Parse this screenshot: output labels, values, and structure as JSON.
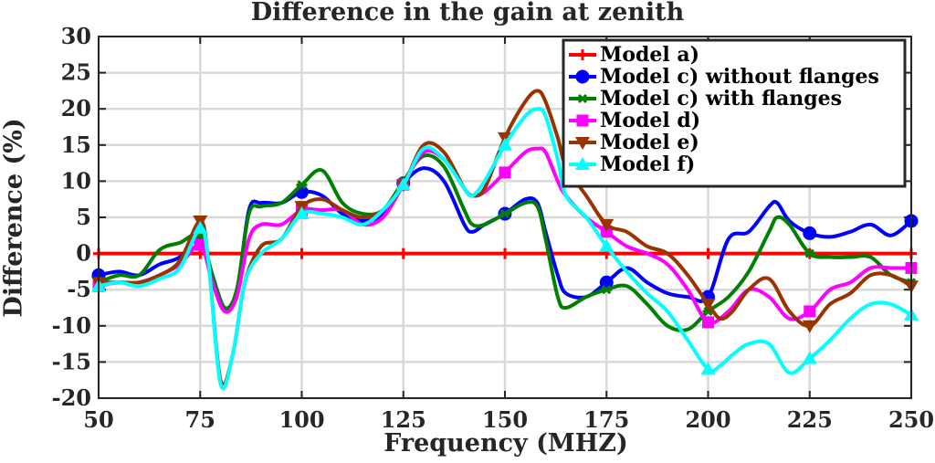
{
  "chart_data": {
    "type": "line",
    "title": "Difference in the gain at zenith",
    "xlabel": "Frequency (MHZ)",
    "ylabel": "Difference (%)",
    "xlim": [
      50,
      250
    ],
    "ylim": [
      -20,
      30
    ],
    "xticks": [
      50,
      75,
      100,
      125,
      150,
      175,
      200,
      225,
      250
    ],
    "yticks": [
      30,
      25,
      20,
      15,
      10,
      5,
      0,
      -5,
      -10,
      -15,
      -20
    ],
    "grid": true,
    "legend_position": "top-right",
    "series": [
      {
        "name": "Model a)",
        "color": "#ff0000",
        "marker": "plus",
        "x": [
          50,
          75,
          100,
          125,
          150,
          175,
          200,
          225,
          250
        ],
        "y": [
          0,
          0,
          0,
          0,
          0,
          0,
          0,
          0,
          0
        ],
        "markers_x": [
          50,
          75,
          100,
          125,
          150,
          175,
          200,
          225,
          250
        ],
        "markers_y": [
          0,
          0,
          0,
          0,
          0,
          0,
          0,
          0,
          0
        ]
      },
      {
        "name": "Model c) without flanges",
        "color": "#0000ff",
        "marker": "circle",
        "x": [
          50,
          55,
          60,
          65,
          70,
          75,
          78,
          81,
          84,
          87,
          90,
          95,
          100,
          105,
          110,
          115,
          120,
          125,
          130,
          135,
          140,
          142,
          145,
          150,
          155,
          158,
          160,
          163,
          165,
          170,
          175,
          180,
          185,
          190,
          195,
          200,
          205,
          210,
          215,
          217,
          220,
          225,
          230,
          235,
          240,
          245,
          250
        ],
        "y": [
          -3,
          -2.5,
          -3,
          -1.5,
          -0.5,
          2.2,
          -3,
          -7.5,
          -5.5,
          6,
          7,
          7,
          8.5,
          8,
          5.5,
          4.5,
          5.5,
          9.7,
          11.8,
          10,
          4,
          3,
          4,
          5.5,
          7.5,
          7,
          3,
          -3,
          -5.5,
          -6,
          -4,
          -2,
          -4,
          -5.5,
          -6,
          -6,
          2,
          3,
          6.5,
          7,
          4.5,
          2.8,
          2.3,
          3,
          4,
          2.5,
          4.5
        ],
        "markers_x": [
          50,
          75,
          100,
          125,
          150,
          175,
          200,
          225,
          250
        ],
        "markers_y": [
          -3,
          2.2,
          8.5,
          9.7,
          5.5,
          -4,
          -6,
          2.8,
          4.5
        ]
      },
      {
        "name": "Model c) with flanges",
        "color": "#008000",
        "marker": "asterisk",
        "x": [
          50,
          55,
          60,
          65,
          70,
          75,
          78,
          81,
          84,
          87,
          90,
          95,
          100,
          105,
          110,
          115,
          120,
          125,
          130,
          135,
          140,
          142,
          145,
          150,
          155,
          158,
          160,
          163,
          165,
          170,
          175,
          180,
          185,
          190,
          195,
          200,
          205,
          210,
          215,
          217,
          220,
          225,
          230,
          235,
          240,
          245,
          250
        ],
        "y": [
          -4,
          -3,
          -3,
          0.5,
          1.5,
          2.5,
          -3,
          -7.5,
          -5,
          5.5,
          6.5,
          7,
          9.5,
          11.5,
          7,
          5.5,
          6,
          10,
          13.5,
          12,
          6,
          4,
          4,
          5.5,
          7,
          6.5,
          2,
          -6,
          -7.5,
          -6,
          -5,
          -4.5,
          -7,
          -10,
          -10.5,
          -8,
          -6,
          -2.5,
          3,
          5,
          4,
          0,
          -0.5,
          -0.5,
          -0.5,
          -3,
          -4
        ],
        "markers_x": [
          50,
          75,
          100,
          125,
          150,
          175,
          200,
          225,
          250
        ],
        "markers_y": [
          -4,
          2.5,
          9.5,
          10,
          5.5,
          -5,
          -8,
          0,
          -4
        ]
      },
      {
        "name": "Model d)",
        "color": "#ff00ff",
        "marker": "square",
        "x": [
          50,
          55,
          60,
          65,
          70,
          75,
          78,
          81,
          84,
          87,
          90,
          95,
          100,
          105,
          110,
          115,
          120,
          125,
          130,
          135,
          140,
          142,
          145,
          150,
          155,
          158,
          160,
          163,
          165,
          170,
          175,
          180,
          185,
          190,
          195,
          200,
          205,
          210,
          215,
          220,
          225,
          230,
          235,
          240,
          245,
          250
        ],
        "y": [
          -4.5,
          -4,
          -4,
          -3,
          -1.5,
          1.2,
          -4,
          -8,
          -6,
          2,
          4,
          4,
          6,
          6,
          6,
          4,
          5,
          9.5,
          14,
          13,
          9,
          8,
          8.5,
          11.2,
          14,
          14.5,
          14,
          10,
          8,
          5,
          3,
          1,
          0,
          -1.5,
          -5,
          -9.5,
          -8,
          -5,
          -6,
          -9,
          -8,
          -5,
          -4,
          -2,
          -2,
          -2
        ],
        "markers_x": [
          50,
          75,
          100,
          125,
          150,
          175,
          200,
          225,
          250
        ],
        "markers_y": [
          -4.5,
          1.2,
          6,
          9.5,
          11.2,
          3,
          -9.5,
          -8,
          -2
        ]
      },
      {
        "name": "Model e)",
        "color": "#993300",
        "marker": "triangle-down",
        "x": [
          50,
          55,
          60,
          65,
          70,
          75,
          77,
          80,
          83,
          86,
          90,
          95,
          100,
          105,
          110,
          115,
          120,
          125,
          130,
          135,
          140,
          142,
          145,
          150,
          155,
          158,
          160,
          163,
          165,
          170,
          175,
          180,
          185,
          190,
          195,
          200,
          203,
          206,
          210,
          215,
          220,
          225,
          230,
          235,
          240,
          245,
          250
        ],
        "y": [
          -4,
          -4,
          -4,
          -3,
          -1,
          4.5,
          -1,
          -17.5,
          -14,
          -4,
          1,
          2,
          6.5,
          7.5,
          6,
          5,
          6,
          9.5,
          15,
          14,
          9,
          8,
          9,
          16,
          21,
          22.5,
          21,
          16,
          12,
          8,
          4,
          3,
          1,
          0,
          -3,
          -7,
          -9,
          -8,
          -5,
          -3.5,
          -8,
          -10,
          -7,
          -5.5,
          -3,
          -3,
          -4.5
        ],
        "markers_x": [
          50,
          75,
          100,
          125,
          150,
          175,
          200,
          225,
          250
        ],
        "markers_y": [
          -4,
          4.5,
          6.5,
          9.5,
          16,
          4,
          -7,
          -10,
          -4.5
        ]
      },
      {
        "name": "Model f)",
        "color": "#00ffff",
        "marker": "triangle-up",
        "x": [
          50,
          55,
          60,
          65,
          70,
          75,
          77,
          80,
          83,
          86,
          90,
          95,
          100,
          105,
          110,
          115,
          120,
          125,
          130,
          135,
          140,
          142,
          145,
          150,
          155,
          158,
          160,
          163,
          165,
          170,
          175,
          180,
          185,
          190,
          195,
          200,
          203,
          206,
          210,
          215,
          220,
          225,
          230,
          235,
          240,
          245,
          250
        ],
        "y": [
          -4.5,
          -4,
          -4.5,
          -3.5,
          -2,
          3.5,
          -1,
          -18,
          -14,
          -4,
          0,
          2,
          5.5,
          5.5,
          5,
          4,
          6,
          9.5,
          14.5,
          13,
          9,
          8,
          10,
          15,
          19,
          20,
          19,
          13,
          8,
          5,
          1,
          -2.5,
          -5.5,
          -8,
          -12,
          -16,
          -15.5,
          -14,
          -12.5,
          -12.5,
          -16.5,
          -14.5,
          -12,
          -9,
          -7,
          -7,
          -8.5
        ],
        "markers_x": [
          50,
          75,
          100,
          125,
          150,
          175,
          200,
          225,
          250
        ],
        "markers_y": [
          -4.5,
          3.5,
          5.5,
          9.5,
          15,
          1,
          -16,
          -14.5,
          -8.5
        ]
      }
    ]
  }
}
